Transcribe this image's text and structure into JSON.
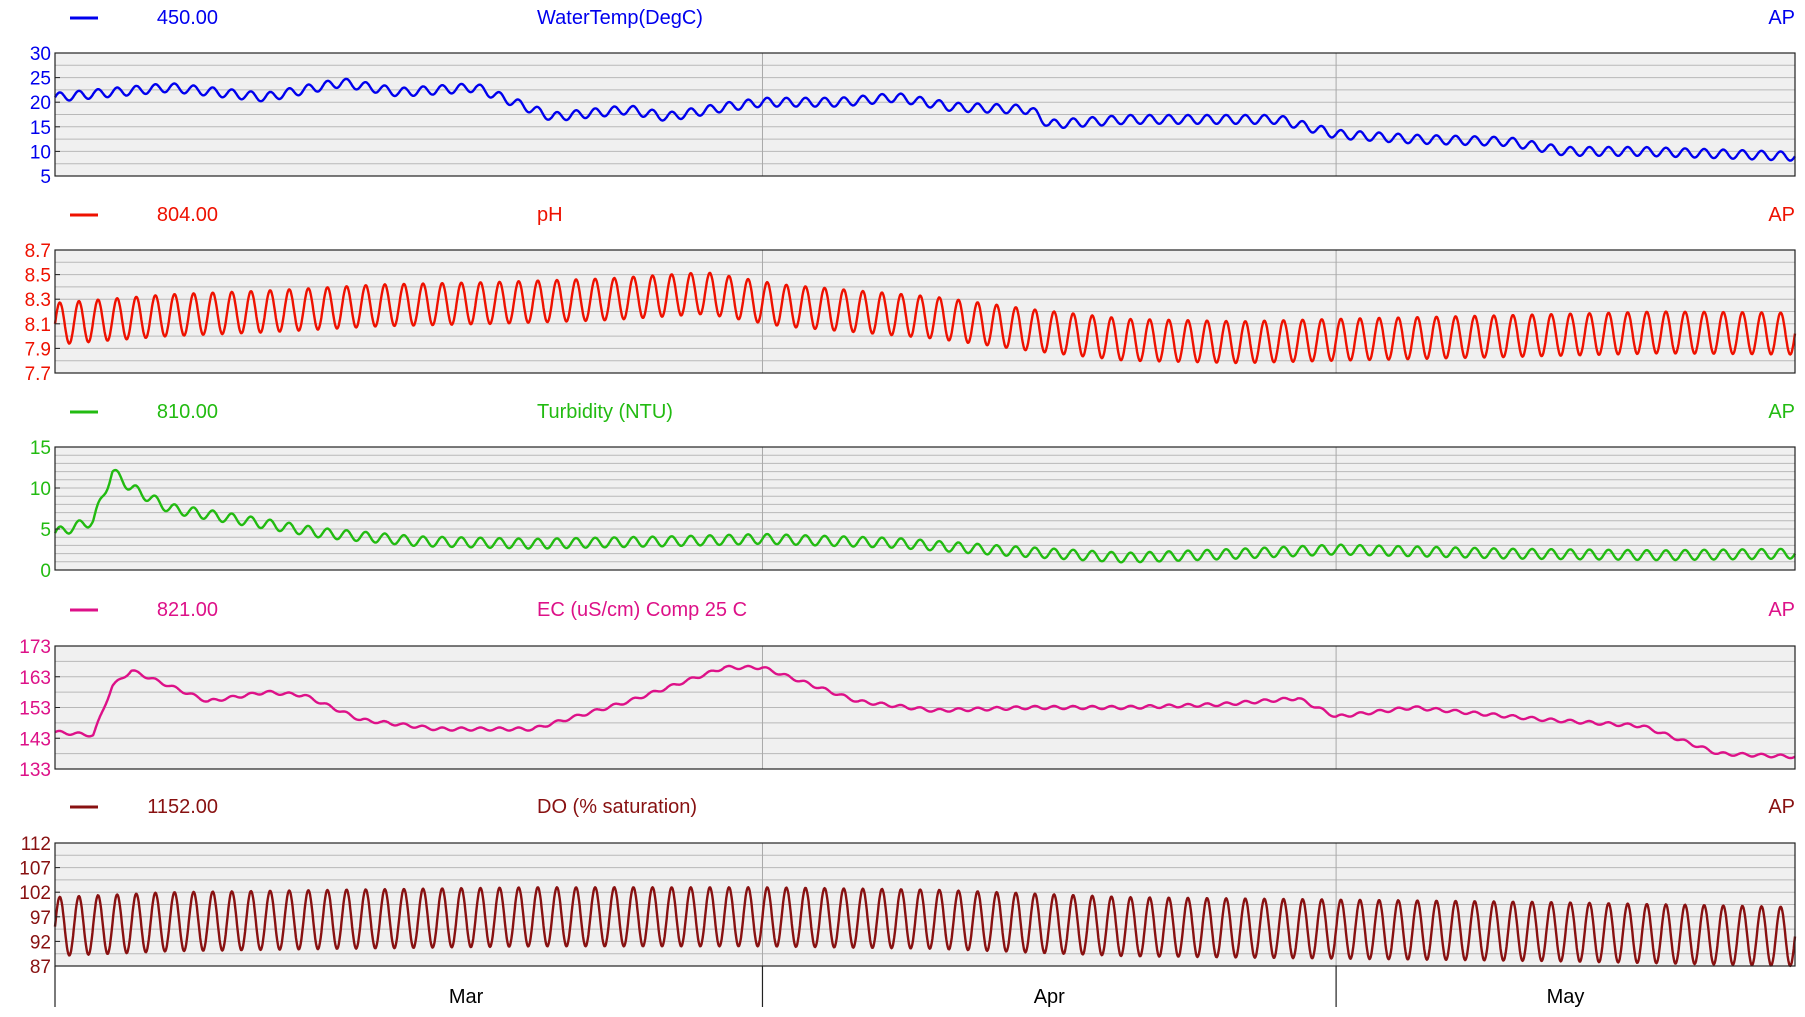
{
  "chart_data": {
    "type": "line",
    "x_axis": {
      "type": "date",
      "start": "2024-02-24",
      "end": "2024-05-25",
      "month_boundaries": [
        "2024-03-01",
        "2024-04-01",
        "2024-05-01"
      ],
      "month_labels": [
        "Mar",
        "Apr",
        "May"
      ]
    },
    "panels": [
      {
        "id": "water-temp",
        "title": "WaterTemp(DegC)",
        "value": "450.00",
        "ap": "AP",
        "color": "#0000ee",
        "ylim": [
          5,
          30
        ],
        "yticks": [
          30,
          25,
          20,
          15,
          10,
          5
        ],
        "grid_step": 2.5,
        "series": [
          {
            "t": "2024-02-24",
            "v": 21
          },
          {
            "t": "2024-03-01",
            "v": 23
          },
          {
            "t": "2024-03-06",
            "v": 21
          },
          {
            "t": "2024-03-10",
            "v": 24
          },
          {
            "t": "2024-03-13",
            "v": 22
          },
          {
            "t": "2024-03-17",
            "v": 23
          },
          {
            "t": "2024-03-19",
            "v": 20
          },
          {
            "t": "2024-03-21",
            "v": 17
          },
          {
            "t": "2024-03-25",
            "v": 18.5
          },
          {
            "t": "2024-03-27",
            "v": 17
          },
          {
            "t": "2024-03-30",
            "v": 19
          },
          {
            "t": "2024-04-01",
            "v": 20
          },
          {
            "t": "2024-04-05",
            "v": 20
          },
          {
            "t": "2024-04-08",
            "v": 21
          },
          {
            "t": "2024-04-11",
            "v": 19
          },
          {
            "t": "2024-04-15",
            "v": 18.5
          },
          {
            "t": "2024-04-16",
            "v": 15.5
          },
          {
            "t": "2024-04-20",
            "v": 16.5
          },
          {
            "t": "2024-04-24",
            "v": 16.5
          },
          {
            "t": "2024-04-28",
            "v": 16.5
          },
          {
            "t": "2024-05-01",
            "v": 13.5
          },
          {
            "t": "2024-05-05",
            "v": 12.5
          },
          {
            "t": "2024-05-10",
            "v": 12
          },
          {
            "t": "2024-05-13",
            "v": 10
          },
          {
            "t": "2024-05-17",
            "v": 10
          },
          {
            "t": "2024-05-21",
            "v": 9.5
          },
          {
            "t": "2024-05-25",
            "v": 9
          }
        ],
        "oscillation": {
          "amplitude": 0.9,
          "period_days": 1
        }
      },
      {
        "id": "ph",
        "title": "pH",
        "value": "804.00",
        "ap": "AP",
        "color": "#ee1100",
        "ylim": [
          7.7,
          8.7
        ],
        "yticks": [
          8.7,
          8.5,
          8.3,
          8.1,
          7.9,
          7.7
        ],
        "grid_step": 0.1,
        "series": [
          {
            "t": "2024-02-24",
            "v": 8.1
          },
          {
            "t": "2024-03-01",
            "v": 8.17
          },
          {
            "t": "2024-03-06",
            "v": 8.2
          },
          {
            "t": "2024-03-12",
            "v": 8.25
          },
          {
            "t": "2024-03-18",
            "v": 8.27
          },
          {
            "t": "2024-03-24",
            "v": 8.3
          },
          {
            "t": "2024-03-29",
            "v": 8.35
          },
          {
            "t": "2024-04-02",
            "v": 8.25
          },
          {
            "t": "2024-04-06",
            "v": 8.2
          },
          {
            "t": "2024-04-10",
            "v": 8.15
          },
          {
            "t": "2024-04-15",
            "v": 8.05
          },
          {
            "t": "2024-04-20",
            "v": 7.97
          },
          {
            "t": "2024-04-26",
            "v": 7.95
          },
          {
            "t": "2024-05-01",
            "v": 7.97
          },
          {
            "t": "2024-05-10",
            "v": 8.0
          },
          {
            "t": "2024-05-18",
            "v": 8.03
          },
          {
            "t": "2024-05-25",
            "v": 8.02
          }
        ],
        "oscillation": {
          "amplitude": 0.17,
          "period_days": 1
        }
      },
      {
        "id": "turbidity",
        "title": "Turbidity (NTU)",
        "value": "810.00",
        "ap": "AP",
        "color": "#22bb11",
        "ylim": [
          0,
          15
        ],
        "yticks": [
          15,
          10,
          5,
          0
        ],
        "grid_step": 1,
        "series": [
          {
            "t": "2024-02-24",
            "v": 4.5
          },
          {
            "t": "2024-02-26",
            "v": 6
          },
          {
            "t": "2024-02-27",
            "v": 12
          },
          {
            "t": "2024-02-28",
            "v": 10
          },
          {
            "t": "2024-03-01",
            "v": 7.5
          },
          {
            "t": "2024-03-05",
            "v": 6
          },
          {
            "t": "2024-03-09",
            "v": 4.5
          },
          {
            "t": "2024-03-14",
            "v": 3.5
          },
          {
            "t": "2024-03-20",
            "v": 3.2
          },
          {
            "t": "2024-03-27",
            "v": 3.5
          },
          {
            "t": "2024-04-01",
            "v": 3.8
          },
          {
            "t": "2024-04-08",
            "v": 3.3
          },
          {
            "t": "2024-04-14",
            "v": 2.3
          },
          {
            "t": "2024-04-20",
            "v": 1.5
          },
          {
            "t": "2024-04-26",
            "v": 2
          },
          {
            "t": "2024-05-01",
            "v": 2.5
          },
          {
            "t": "2024-05-10",
            "v": 2
          },
          {
            "t": "2024-05-18",
            "v": 1.8
          },
          {
            "t": "2024-05-25",
            "v": 2
          }
        ],
        "oscillation": {
          "amplitude": 0.6,
          "period_days": 1
        }
      },
      {
        "id": "ec",
        "title": "EC (uS/cm) Comp 25 C",
        "value": "821.00",
        "ap": "AP",
        "color": "#dd1188",
        "ylim": [
          133,
          173
        ],
        "yticks": [
          173,
          163,
          153,
          143,
          133
        ],
        "grid_step": 5,
        "series": [
          {
            "t": "2024-02-24",
            "v": 145
          },
          {
            "t": "2024-02-26",
            "v": 144
          },
          {
            "t": "2024-02-27",
            "v": 160
          },
          {
            "t": "2024-02-28",
            "v": 165
          },
          {
            "t": "2024-03-01",
            "v": 160
          },
          {
            "t": "2024-03-03",
            "v": 155
          },
          {
            "t": "2024-03-06",
            "v": 158
          },
          {
            "t": "2024-03-08",
            "v": 157
          },
          {
            "t": "2024-03-11",
            "v": 149
          },
          {
            "t": "2024-03-15",
            "v": 146
          },
          {
            "t": "2024-03-20",
            "v": 146
          },
          {
            "t": "2024-03-25",
            "v": 155
          },
          {
            "t": "2024-03-30",
            "v": 166
          },
          {
            "t": "2024-04-01",
            "v": 166
          },
          {
            "t": "2024-04-06",
            "v": 155
          },
          {
            "t": "2024-04-10",
            "v": 152
          },
          {
            "t": "2024-04-15",
            "v": 153
          },
          {
            "t": "2024-04-20",
            "v": 153
          },
          {
            "t": "2024-04-25",
            "v": 154
          },
          {
            "t": "2024-04-29",
            "v": 156
          },
          {
            "t": "2024-05-01",
            "v": 150
          },
          {
            "t": "2024-05-05",
            "v": 153
          },
          {
            "t": "2024-05-12",
            "v": 149
          },
          {
            "t": "2024-05-17",
            "v": 147
          },
          {
            "t": "2024-05-21",
            "v": 138
          },
          {
            "t": "2024-05-25",
            "v": 137
          }
        ],
        "oscillation": {
          "amplitude": 0.5,
          "period_days": 1
        }
      },
      {
        "id": "do",
        "title": "DO (% saturation)",
        "value": "1152.00",
        "ap": "AP",
        "color": "#881111",
        "ylim": [
          87,
          112
        ],
        "yticks": [
          112,
          107,
          102,
          97,
          92,
          87
        ],
        "grid_step": 2.5,
        "series": [
          {
            "t": "2024-02-24",
            "v": 95
          },
          {
            "t": "2024-03-01",
            "v": 96
          },
          {
            "t": "2024-03-10",
            "v": 96.5
          },
          {
            "t": "2024-03-20",
            "v": 97
          },
          {
            "t": "2024-04-01",
            "v": 97
          },
          {
            "t": "2024-04-10",
            "v": 96.5
          },
          {
            "t": "2024-04-20",
            "v": 95
          },
          {
            "t": "2024-05-01",
            "v": 94.5
          },
          {
            "t": "2024-05-12",
            "v": 94
          },
          {
            "t": "2024-05-25",
            "v": 93
          }
        ],
        "oscillation": {
          "amplitude": 6,
          "period_days": 1
        }
      }
    ]
  }
}
